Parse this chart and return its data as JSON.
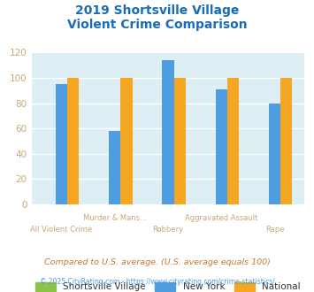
{
  "title_line1": "2019 Shortsville Village",
  "title_line2": "Violent Crime Comparison",
  "cat_labels_line1": [
    "",
    "Murder & Mans...",
    "",
    "Aggravated Assault",
    ""
  ],
  "cat_labels_line2": [
    "All Violent Crime",
    "",
    "Robbery",
    "",
    "Rape"
  ],
  "shortsville": [
    0,
    0,
    0,
    0,
    0
  ],
  "new_york": [
    95,
    58,
    114,
    91,
    80
  ],
  "national": [
    100,
    100,
    100,
    100,
    100
  ],
  "color_shortsville": "#8bc34a",
  "color_newyork": "#4d9de0",
  "color_national": "#f5a623",
  "ylim": [
    0,
    120
  ],
  "yticks": [
    0,
    20,
    40,
    60,
    80,
    100,
    120
  ],
  "background_color": "#ddeef4",
  "grid_color": "#ffffff",
  "title_color": "#1a6db5",
  "ytick_color": "#c8a878",
  "xtick_color": "#c8a878",
  "legend_label_color": "#333333",
  "footnote1": "Compared to U.S. average. (U.S. average equals 100)",
  "footnote2": "© 2025 CityRating.com - https://www.cityrating.com/crime-statistics/",
  "footnote1_color": "#c07830",
  "footnote2_color": "#4d9de0"
}
